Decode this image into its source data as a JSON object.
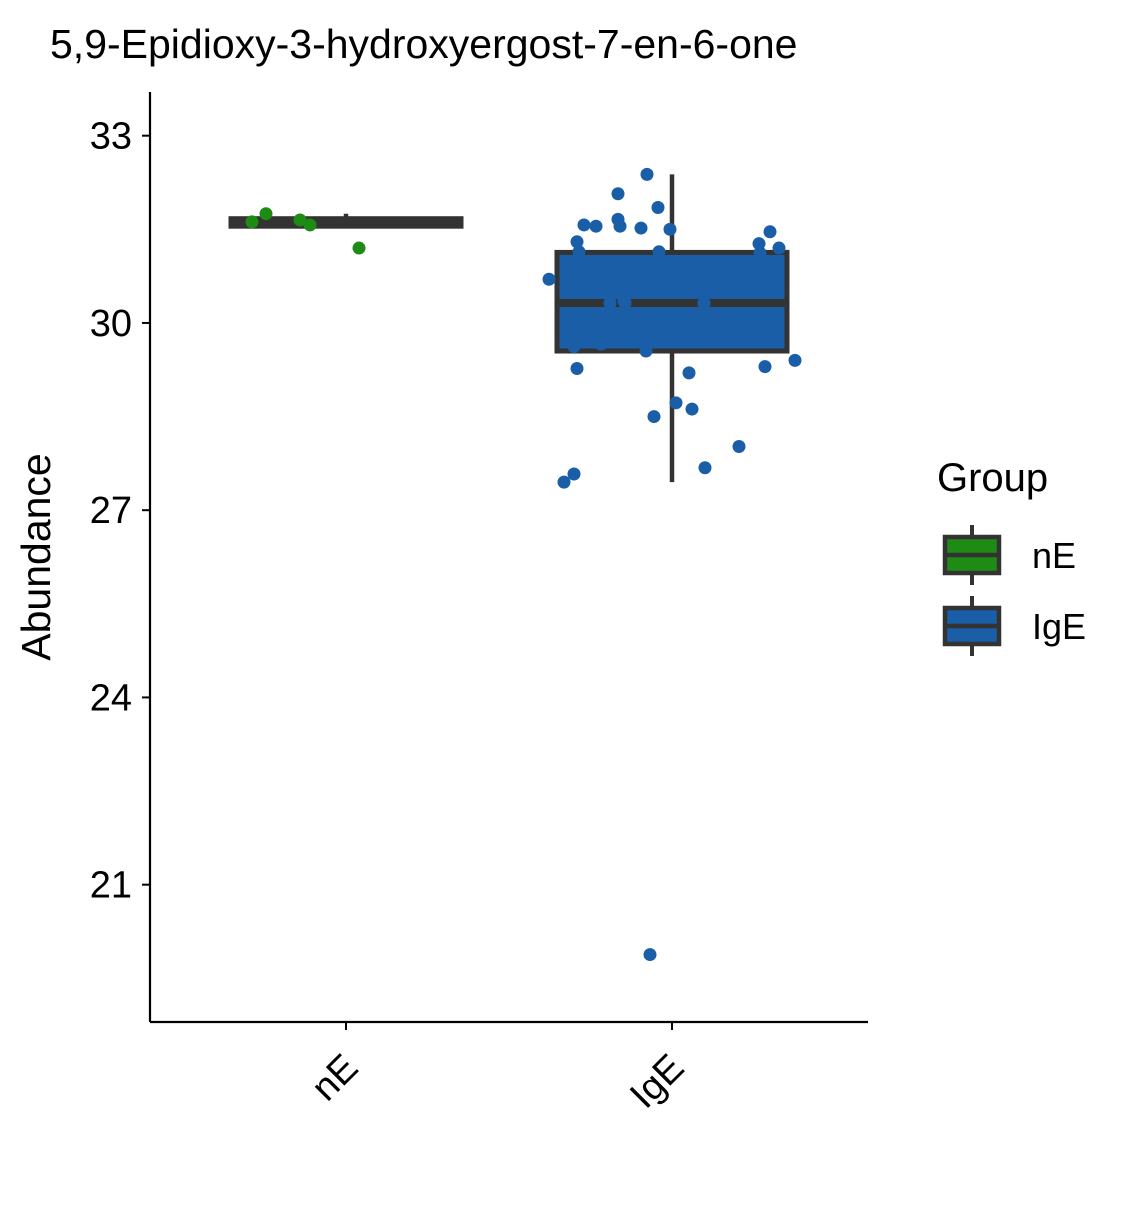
{
  "chart_data": {
    "type": "box",
    "title": "5,9-Epidioxy-3-hydroxyergost-7-en-6-one",
    "xlabel": "",
    "ylabel": "Abundance",
    "ylim": [
      18.8,
      33.7
    ],
    "yticks": [
      21,
      24,
      27,
      30,
      33
    ],
    "categories": [
      "nE",
      "IgE"
    ],
    "legend": {
      "title": "Group",
      "position": "right",
      "entries": [
        "nE",
        "IgE"
      ]
    },
    "grid": false,
    "colors": {
      "nE": "#1e8c14",
      "IgE": "#1a5ea8",
      "box_line": "#333333"
    },
    "boxes": [
      {
        "group": "nE",
        "min": 31.55,
        "q1": 31.55,
        "median": 31.62,
        "q3": 31.67,
        "max": 31.75
      },
      {
        "group": "IgE",
        "min": 27.45,
        "q1": 29.55,
        "median": 30.32,
        "q3": 31.13,
        "max": 32.38
      }
    ],
    "points": [
      {
        "group": "nE",
        "values": [
          31.62,
          31.75,
          31.65,
          31.57,
          31.2
        ]
      },
      {
        "group": "IgE",
        "values": [
          32.38,
          32.07,
          31.85,
          31.66,
          31.57,
          31.55,
          31.55,
          31.52,
          31.5,
          31.46,
          31.3,
          31.27,
          31.2,
          31.14,
          31.14,
          31.12,
          30.7,
          30.32,
          30.32,
          30.32,
          30.35,
          29.66,
          29.62,
          29.55,
          29.4,
          29.3,
          29.27,
          29.2,
          28.72,
          28.62,
          28.5,
          28.02,
          27.68,
          27.58,
          27.45,
          19.88
        ]
      }
    ]
  }
}
